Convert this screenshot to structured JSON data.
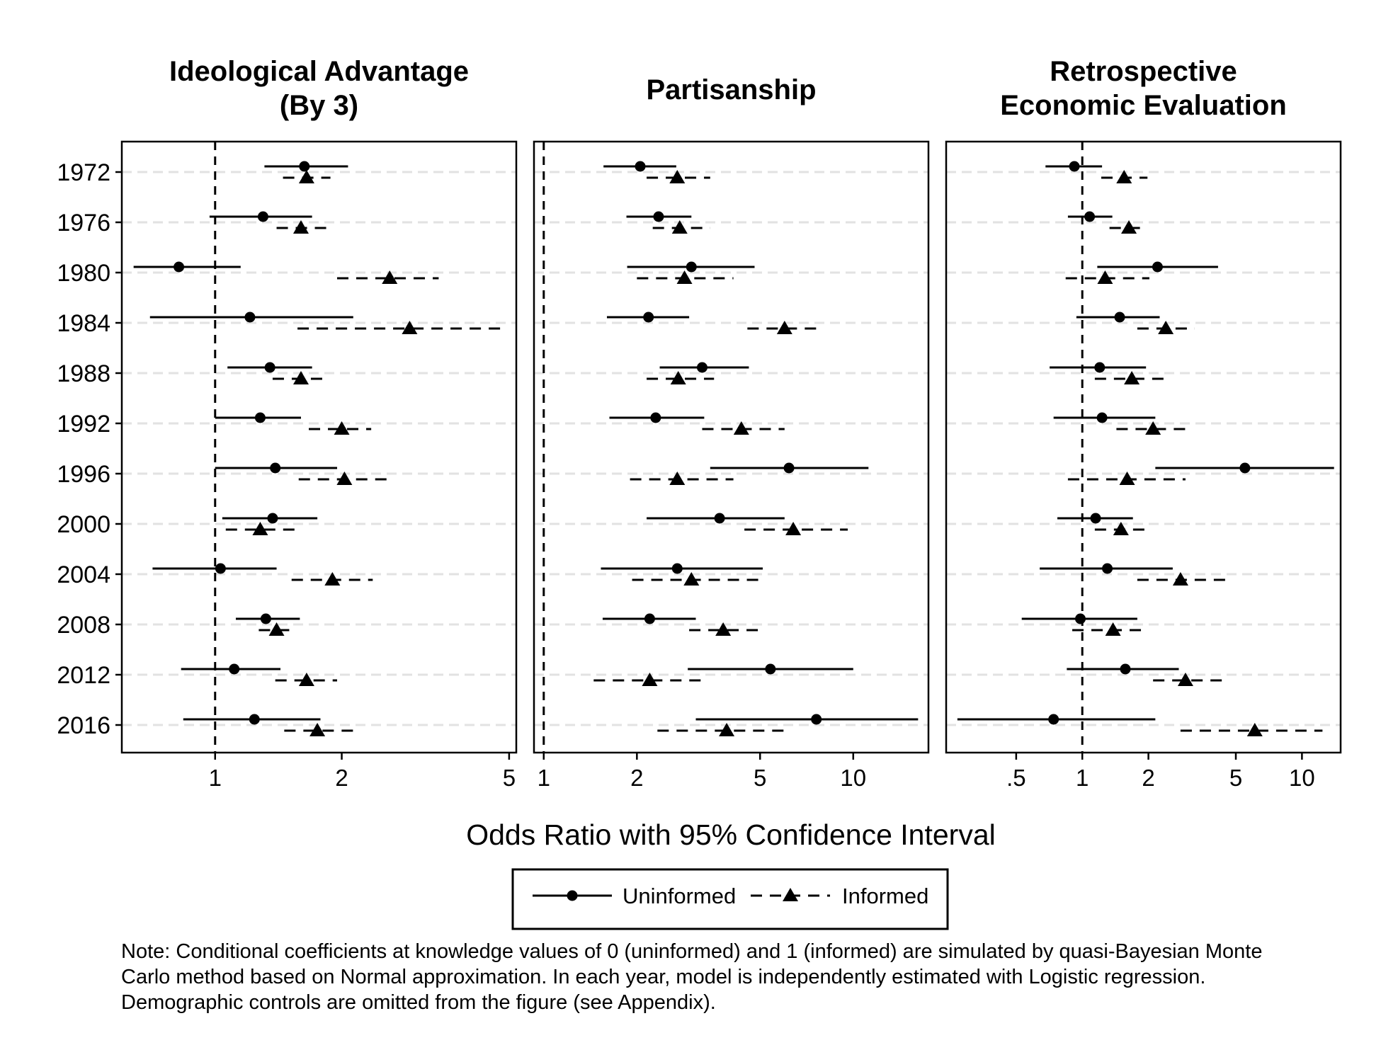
{
  "chart_data": {
    "type": "forest-plot",
    "xlabel": "Odds Ratio with 95% Confidence Interval",
    "x_scale": "log",
    "years": [
      "1972",
      "1976",
      "1980",
      "1984",
      "1988",
      "1992",
      "1996",
      "2000",
      "2004",
      "2008",
      "2012",
      "2016"
    ],
    "legend": {
      "placement": "bottom-center",
      "entries": [
        {
          "name": "Uninformed",
          "line": "solid",
          "marker": "circle"
        },
        {
          "name": "Informed",
          "line": "dashed",
          "marker": "triangle"
        }
      ]
    },
    "panels": [
      {
        "title": [
          "Ideological Advantage",
          "(By 3)"
        ],
        "xlim": [
          0.6,
          5.2
        ],
        "ticks": [
          1,
          2,
          5
        ],
        "tick_labels": [
          "1",
          "2",
          "5"
        ],
        "series": [
          {
            "name": "Uninformed",
            "est": [
              1.63,
              1.3,
              0.82,
              1.21,
              1.35,
              1.28,
              1.39,
              1.37,
              1.03,
              1.32,
              1.11,
              1.24
            ],
            "lo": [
              1.31,
              0.97,
              0.64,
              0.7,
              1.07,
              1.0,
              1.0,
              1.04,
              0.71,
              1.12,
              0.83,
              0.84
            ],
            "hi": [
              2.07,
              1.7,
              1.15,
              2.13,
              1.7,
              1.6,
              1.95,
              1.75,
              1.4,
              1.59,
              1.43,
              1.78
            ]
          },
          {
            "name": "Informed",
            "est": [
              1.65,
              1.6,
              2.6,
              2.9,
              1.6,
              2.0,
              2.03,
              1.28,
              1.9,
              1.4,
              1.65,
              1.75
            ],
            "lo": [
              1.45,
              1.4,
              1.95,
              1.57,
              1.37,
              1.67,
              1.58,
              1.06,
              1.52,
              1.27,
              1.39,
              1.46
            ],
            "hi": [
              1.88,
              1.85,
              3.4,
              4.9,
              1.87,
              2.35,
              2.62,
              1.55,
              2.37,
              1.55,
              1.95,
              2.2
            ]
          }
        ]
      },
      {
        "title": [
          "Partisanship"
        ],
        "xlim": [
          0.93,
          17.5
        ],
        "ticks": [
          1,
          2,
          5,
          10
        ],
        "tick_labels": [
          "1",
          "2",
          "5",
          "10"
        ],
        "series": [
          {
            "name": "Uninformed",
            "est": [
              2.05,
              2.35,
              3.0,
              2.18,
              3.25,
              2.3,
              6.2,
              3.7,
              2.7,
              2.2,
              5.4,
              7.6
            ],
            "lo": [
              1.56,
              1.85,
              1.86,
              1.6,
              2.37,
              1.63,
              3.45,
              2.15,
              1.53,
              1.55,
              2.92,
              3.1
            ],
            "hi": [
              2.68,
              3.0,
              4.8,
              2.95,
              4.6,
              3.3,
              11.2,
              6.0,
              5.1,
              3.1,
              10.0,
              16.2
            ]
          },
          {
            "name": "Informed",
            "est": [
              2.7,
              2.75,
              2.85,
              6.0,
              2.72,
              4.35,
              2.7,
              6.4,
              3.0,
              3.8,
              2.2,
              3.9
            ],
            "lo": [
              2.15,
              2.25,
              2.0,
              4.55,
              2.15,
              3.25,
              1.9,
              4.45,
              1.93,
              2.95,
              1.45,
              2.33
            ],
            "hi": [
              3.45,
              3.45,
              4.1,
              7.95,
              3.55,
              6.0,
              4.1,
              9.6,
              4.95,
              4.95,
              3.35,
              6.2
            ]
          }
        ]
      },
      {
        "title": [
          "Retrospective",
          "Economic Evaluation"
        ],
        "xlim": [
          0.24,
          15.0
        ],
        "ticks": [
          0.5,
          1,
          2,
          5,
          10
        ],
        "tick_labels": [
          ".5",
          "1",
          "2",
          "5",
          "10"
        ],
        "series": [
          {
            "name": "Uninformed",
            "est": [
              0.92,
              1.08,
              2.2,
              1.48,
              1.2,
              1.23,
              5.5,
              1.15,
              1.3,
              0.98,
              1.57,
              0.74
            ],
            "lo": [
              0.68,
              0.86,
              1.17,
              0.94,
              0.71,
              0.74,
              2.15,
              0.77,
              0.64,
              0.53,
              0.85,
              0.27
            ],
            "hi": [
              1.23,
              1.37,
              4.15,
              2.25,
              1.95,
              2.15,
              14.0,
              1.7,
              2.58,
              1.78,
              2.75,
              2.15
            ]
          },
          {
            "name": "Informed",
            "est": [
              1.55,
              1.63,
              1.27,
              2.4,
              1.68,
              2.1,
              1.6,
              1.5,
              2.8,
              1.38,
              2.95,
              6.1
            ]
          },
          {
            "name": "Informed-ci",
            "lo": [
              1.22,
              1.33,
              0.84,
              1.78,
              1.14,
              1.43,
              0.86,
              1.14,
              1.78,
              0.9,
              2.1,
              2.8
            ],
            "hi": [
              1.98,
              1.96,
              2.02,
              3.25,
              2.48,
              2.95,
              2.95,
              2.0,
              4.65,
              2.0,
              4.5,
              12.4
            ]
          }
        ]
      }
    ]
  },
  "note": [
    "Note: Conditional coefficients at knowledge values of 0 (uninformed) and 1 (informed) are simulated by quasi-Bayesian Monte",
    "Carlo method based on Normal approximation. In each year, model is independently estimated with Logistic regression.",
    "Demographic controls are omitted from the figure (see Appendix)."
  ]
}
